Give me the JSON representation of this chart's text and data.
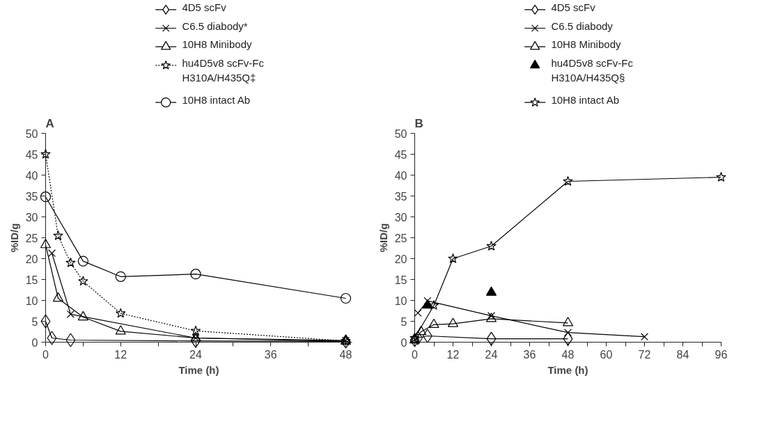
{
  "chart_data": [
    {
      "type": "line",
      "title": "A",
      "xlabel": "Time (h)",
      "ylabel": "%ID/g",
      "xlim": [
        0,
        49
      ],
      "ylim": [
        0,
        50
      ],
      "xticks": [
        0,
        {
          "value": 6,
          "label": null
        },
        12,
        {
          "value": 18,
          "label": null
        },
        24,
        {
          "value": 30,
          "label": null
        },
        36,
        {
          "value": 42,
          "label": null
        },
        48
      ],
      "yticks": [
        0,
        5,
        10,
        15,
        20,
        25,
        30,
        35,
        40,
        45,
        50
      ],
      "grid": false,
      "legend": "top",
      "series": [
        {
          "name": "4D5 scFv",
          "color": "#000000",
          "marker": "diamond",
          "line_style": "solid",
          "x": [
            0,
            1,
            4,
            24,
            48
          ],
          "values": [
            5,
            1,
            0.5,
            0.3,
            0.2
          ]
        },
        {
          "name": "C6.5 diabody*",
          "color": "#000000",
          "marker": "cross",
          "line_style": "solid",
          "x": [
            1,
            4,
            24,
            48
          ],
          "values": [
            21.3,
            6.7,
            1,
            0.4
          ]
        },
        {
          "name": "10H8 Minibody",
          "color": "#000000",
          "marker": "triangle",
          "line_style": "solid",
          "x": [
            0,
            2,
            6,
            12,
            24,
            48
          ],
          "values": [
            23.3,
            10.5,
            6,
            2.6,
            1,
            0.2
          ]
        },
        {
          "name": "hu4D5v8 scFv-Fc\nH310A/H435Q‡",
          "color": "#000000",
          "marker": "star",
          "line_style": "dotted",
          "x": [
            0,
            2,
            4,
            6,
            12,
            24,
            48
          ],
          "values": [
            45,
            25.5,
            19,
            14.6,
            6.9,
            2.7,
            0.3
          ]
        },
        {
          "name": "10H8 intact Ab",
          "color": "#000000",
          "marker": "circle",
          "line_style": "solid",
          "x": [
            0,
            6,
            12,
            24,
            48
          ],
          "values": [
            34.8,
            19.4,
            15.7,
            16.3,
            10.5
          ]
        }
      ]
    },
    {
      "type": "line",
      "title": "B",
      "xlabel": "Time (h)",
      "ylabel": "%ID/g",
      "xlim": [
        0,
        96
      ],
      "ylim": [
        0,
        50
      ],
      "xticks": [
        0,
        {
          "value": 6,
          "label": null
        },
        12,
        {
          "value": 18,
          "label": null
        },
        24,
        {
          "value": 30,
          "label": null
        },
        36,
        {
          "value": 42,
          "label": null
        },
        48,
        {
          "value": 54,
          "label": null
        },
        60,
        {
          "value": 66,
          "label": null
        },
        72,
        {
          "value": 78,
          "label": null
        },
        84,
        {
          "value": 90,
          "label": null
        },
        96
      ],
      "yticks": [
        0,
        5,
        10,
        15,
        20,
        25,
        30,
        35,
        40,
        45,
        50
      ],
      "grid": false,
      "legend": "top",
      "series": [
        {
          "name": "4D5 scFv",
          "color": "#000000",
          "marker": "diamond",
          "line_style": "solid",
          "x": [
            0,
            1,
            4,
            24,
            48
          ],
          "values": [
            0.5,
            1,
            1.5,
            0.8,
            0.8
          ]
        },
        {
          "name": "C6.5 diabody",
          "color": "#000000",
          "marker": "cross",
          "line_style": "solid",
          "x": [
            1,
            4,
            24,
            48,
            72
          ],
          "values": [
            7,
            9.9,
            6.3,
            2.3,
            1.3
          ]
        },
        {
          "name": "10H8 Minibody",
          "color": "#000000",
          "marker": "triangle",
          "line_style": "solid",
          "x": [
            0,
            2,
            6,
            12,
            24,
            48
          ],
          "values": [
            0.5,
            2.5,
            4.2,
            4.4,
            5.6,
            4.6
          ]
        },
        {
          "name": "hu4D5v8 scFv-Fc\nH310A/H435Q§",
          "type": "scatter",
          "color": "#000000",
          "marker": "triangle",
          "x": [
            4,
            24
          ],
          "values": [
            8.8,
            11.9
          ]
        },
        {
          "name": "10H8 intact Ab",
          "color": "#000000",
          "marker": "star",
          "line_style": "solid",
          "x": [
            0,
            6,
            12,
            24,
            48,
            96
          ],
          "values": [
            1,
            8.8,
            20,
            23,
            38.5,
            39.5
          ]
        }
      ]
    }
  ]
}
